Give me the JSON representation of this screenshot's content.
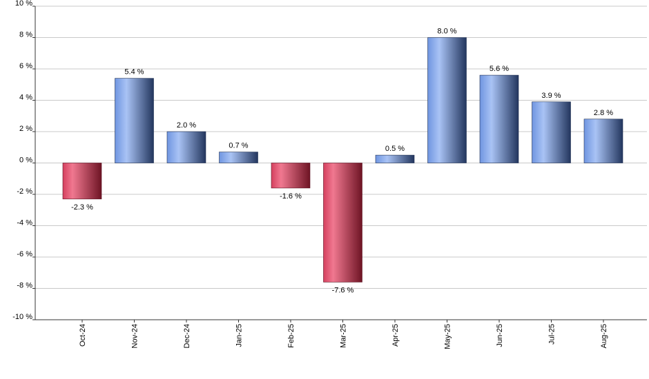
{
  "chart_data": {
    "type": "bar",
    "title": "",
    "xlabel": "",
    "ylabel": "",
    "categories": [
      "Oct-24",
      "Nov-24",
      "Dec-24",
      "Jan-25",
      "Feb-25",
      "Mar-25",
      "Apr-25",
      "May-25",
      "Jun-25",
      "Jul-25",
      "Aug-25"
    ],
    "values": [
      -2.3,
      5.4,
      2.0,
      0.7,
      -1.6,
      -7.6,
      0.5,
      8.0,
      5.6,
      3.9,
      2.8
    ],
    "data_labels": [
      "-2.3 %",
      "5.4 %",
      "2.0 %",
      "0.7 %",
      "-1.6 %",
      "-7.6 %",
      "0.5 %",
      "8.0 %",
      "5.6 %",
      "3.9 %",
      "2.8 %"
    ],
    "ylim": [
      -10,
      10
    ],
    "y_ticks": [
      10,
      8,
      6,
      4,
      2,
      0,
      -2,
      -4,
      -6,
      -8,
      -10
    ],
    "y_tick_labels": [
      "10 %",
      "8 %",
      "6 %",
      "4 %",
      "2 %",
      "0 %",
      "-2 %",
      "-4 %",
      "-6 %",
      "-8 %",
      "-10 %"
    ],
    "grid": true,
    "legend": "none",
    "colors": {
      "positive_light": "#a9c3f5",
      "positive_mid": "#6f95e0",
      "positive_dark": "#23365e",
      "negative_light": "#f07890",
      "negative_mid": "#d4405e",
      "negative_dark": "#6e1424"
    }
  }
}
